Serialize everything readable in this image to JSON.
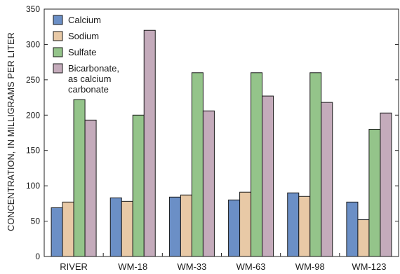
{
  "chart_data": {
    "type": "bar",
    "categories": [
      "RIVER",
      "WM-18",
      "WM-33",
      "WM-63",
      "WM-98",
      "WM-123"
    ],
    "series": [
      {
        "name": "Calcium",
        "color": "#6b8fc6",
        "values": [
          69,
          83,
          84,
          80,
          90,
          77
        ]
      },
      {
        "name": "Sodium",
        "color": "#e8c9a6",
        "values": [
          77,
          78,
          87,
          91,
          85,
          52
        ]
      },
      {
        "name": "Sulfate",
        "color": "#94c48a",
        "values": [
          222,
          200,
          260,
          260,
          260,
          180
        ]
      },
      {
        "name": "Bicarbonate, as calcium carbonate",
        "legend_lines": [
          "Bicarbonate,",
          "as calcium",
          "carbonate"
        ],
        "color": "#c4abbb",
        "values": [
          193,
          320,
          206,
          227,
          218,
          203
        ]
      }
    ],
    "ylabel": "CONCENTRATION, IN MILLIGRAMS PER LITER",
    "xlabel": "",
    "ylim": [
      0,
      350
    ],
    "yticks": [
      0,
      50,
      100,
      150,
      200,
      250,
      300,
      350
    ],
    "grid": false,
    "legend_position": "top-left"
  }
}
